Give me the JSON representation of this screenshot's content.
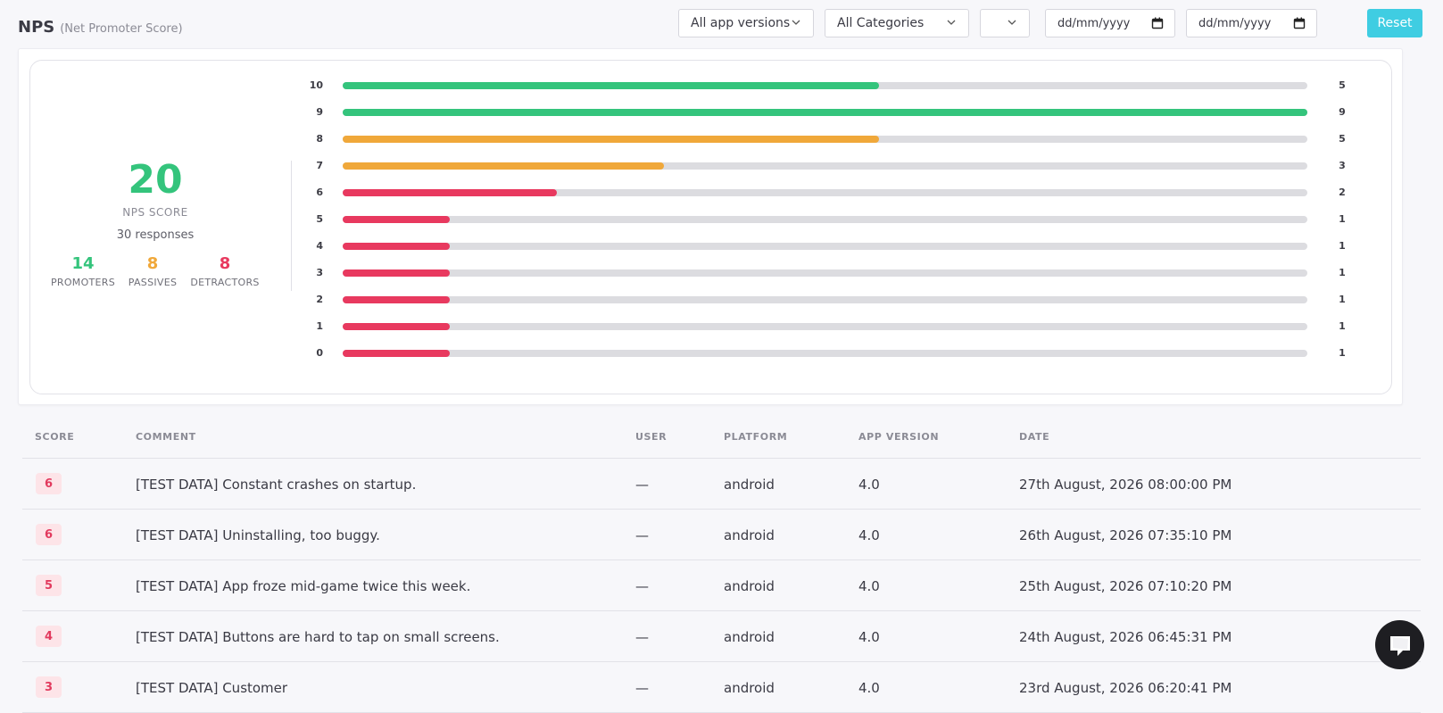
{
  "header": {
    "title": "NPS",
    "subtitle": "(Net Promoter Score)",
    "filters": {
      "app_versions": "All app versions",
      "categories": "All Categories",
      "extra": "",
      "date_from": "dd/mm/yyyy",
      "date_to": "dd/mm/yyyy"
    },
    "reset_label": "Reset"
  },
  "summary": {
    "nps_score": "20",
    "nps_label": "NPS SCORE",
    "responses": "30 responses",
    "promoters": {
      "count": "14",
      "label": "PROMOTERS"
    },
    "passives": {
      "count": "8",
      "label": "PASSIVES"
    },
    "detractors": {
      "count": "8",
      "label": "DETRACTORS"
    }
  },
  "colors": {
    "promoter": "#34c47c",
    "passive": "#f0a83a",
    "detractor": "#e8395f",
    "track": "#dcdce0",
    "accent": "#3fcde2"
  },
  "distribution": {
    "max_count": 9,
    "rows": [
      {
        "score": "10",
        "count": 5,
        "group": "promoter"
      },
      {
        "score": "9",
        "count": 9,
        "group": "promoter"
      },
      {
        "score": "8",
        "count": 5,
        "group": "passive"
      },
      {
        "score": "7",
        "count": 3,
        "group": "passive"
      },
      {
        "score": "6",
        "count": 2,
        "group": "detractor"
      },
      {
        "score": "5",
        "count": 1,
        "group": "detractor"
      },
      {
        "score": "4",
        "count": 1,
        "group": "detractor"
      },
      {
        "score": "3",
        "count": 1,
        "group": "detractor"
      },
      {
        "score": "2",
        "count": 1,
        "group": "detractor"
      },
      {
        "score": "1",
        "count": 1,
        "group": "detractor"
      },
      {
        "score": "0",
        "count": 1,
        "group": "detractor"
      }
    ]
  },
  "table": {
    "columns": [
      "SCORE",
      "COMMENT",
      "USER",
      "PLATFORM",
      "APP VERSION",
      "DATE"
    ],
    "rows": [
      {
        "score": "6",
        "comment": "[TEST DATA] Constant crashes on startup.",
        "user": "—",
        "platform": "android",
        "app_version": "4.0",
        "date": "27th August, 2026 08:00:00 PM"
      },
      {
        "score": "6",
        "comment": "[TEST DATA] Uninstalling, too buggy.",
        "user": "—",
        "platform": "android",
        "app_version": "4.0",
        "date": "26th August, 2026 07:35:10 PM"
      },
      {
        "score": "5",
        "comment": "[TEST DATA] App froze mid-game twice this week.",
        "user": "—",
        "platform": "android",
        "app_version": "4.0",
        "date": "25th August, 2026 07:10:20 PM"
      },
      {
        "score": "4",
        "comment": "[TEST DATA] Buttons are hard to tap on small screens.",
        "user": "—",
        "platform": "android",
        "app_version": "4.0",
        "date": "24th August, 2026 06:45:31 PM"
      },
      {
        "score": "3",
        "comment": "[TEST DATA] Customer ",
        "user": "—",
        "platform": "android",
        "app_version": "4.0",
        "date": "23rd August, 2026 06:20:41 PM"
      }
    ]
  }
}
